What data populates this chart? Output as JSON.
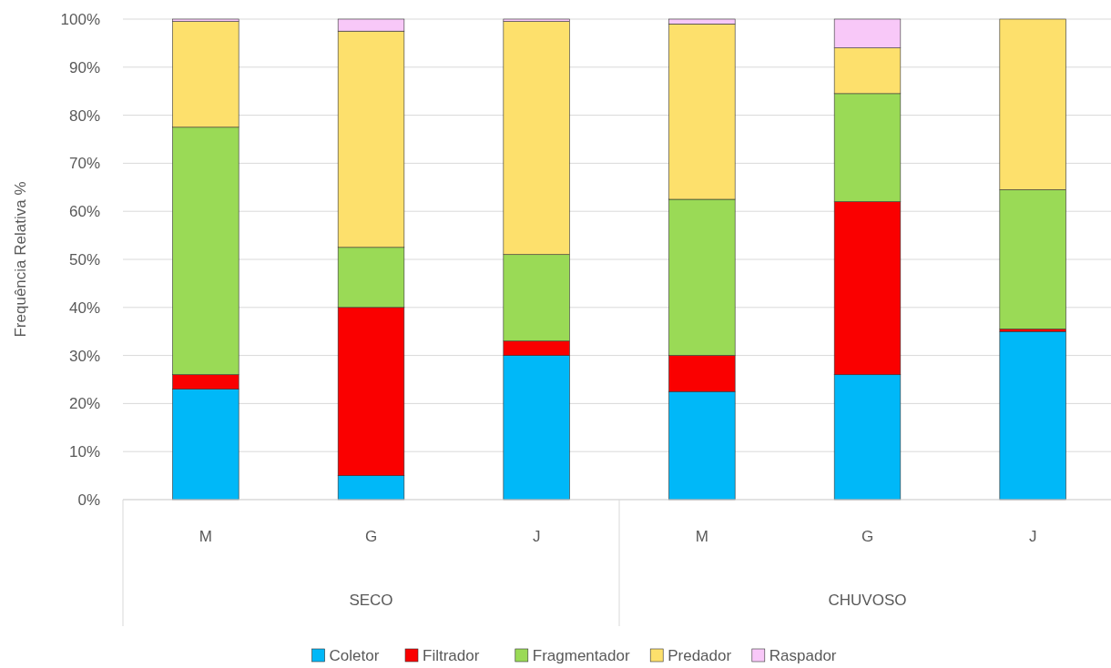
{
  "chart_data": {
    "type": "bar",
    "stacked": true,
    "ylabel": "Frequência Relativa %",
    "categories": [
      "M",
      "G",
      "J",
      "M",
      "G",
      "J"
    ],
    "annotations": [
      "SECO",
      "CHUVOSO"
    ],
    "series": [
      {
        "name": "Coletor",
        "color": "#00b8f8",
        "values": [
          23,
          5,
          30,
          22.5,
          26,
          35
        ]
      },
      {
        "name": "Filtrador",
        "color": "#fa0000",
        "values": [
          3,
          35,
          3,
          7.5,
          36,
          0.5
        ]
      },
      {
        "name": "Fragmentador",
        "color": "#9ada56",
        "values": [
          51.5,
          12.5,
          18,
          32.5,
          22.5,
          29
        ]
      },
      {
        "name": "Predador",
        "color": "#fde06c",
        "values": [
          22,
          45,
          48.5,
          36.5,
          9.5,
          35.5
        ]
      },
      {
        "name": "Raspador",
        "color": "#f8c8f8",
        "values": [
          0.5,
          2.5,
          0.5,
          1,
          6,
          0
        ]
      }
    ],
    "ylim": [
      0,
      100
    ],
    "yticks": [
      {
        "value": 0,
        "label": "0%"
      },
      {
        "value": 10,
        "label": "10%"
      },
      {
        "value": 20,
        "label": "20%"
      },
      {
        "value": 30,
        "label": "30%"
      },
      {
        "value": 40,
        "label": "40%"
      },
      {
        "value": 50,
        "label": "50%"
      },
      {
        "value": 60,
        "label": "60%"
      },
      {
        "value": 70,
        "label": "70%"
      },
      {
        "value": 80,
        "label": "80%"
      },
      {
        "value": 90,
        "label": "90%"
      },
      {
        "value": 100,
        "label": "100%"
      }
    ],
    "grid": "y",
    "legend": "bottom"
  }
}
